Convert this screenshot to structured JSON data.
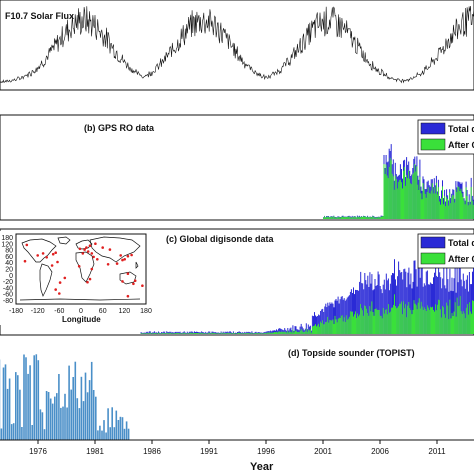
{
  "colors": {
    "total": "#2a2ad6",
    "after_qc": "#3ae03a",
    "topside": "#4a8fc8",
    "line": "#111111",
    "map_dot": "#e02020"
  },
  "chart_data": [
    {
      "type": "line",
      "panel": "a",
      "title": "F10.7 Solar Flux",
      "x_range": [
        1972,
        2015
      ],
      "cycle_peaks": [
        1980,
        1990.5,
        2001.5,
        2014
      ],
      "cycle_minima": [
        1976.5,
        1986.5,
        1996.5,
        2008.7
      ],
      "grid": false
    },
    {
      "type": "bar",
      "panel": "b",
      "title": "(b) GPS RO data",
      "legend": [
        "Total data",
        "After Quality Control"
      ],
      "legend_position": "top-right",
      "x_range": [
        1972,
        2015
      ],
      "start_year": 2001,
      "ramp_year": 2006.3
    },
    {
      "type": "bar",
      "panel": "c",
      "title": "(c) Global digisonde data",
      "legend": [
        "Total data",
        "After Quality Control"
      ],
      "legend_position": "top-right",
      "x_range": [
        1972,
        2015
      ],
      "start_year": 1985,
      "inset": {
        "type": "scatter",
        "xlabel": "Longitude",
        "x_ticks": [
          "-180",
          "-120",
          "-60",
          "0",
          "60",
          "120",
          "180"
        ],
        "y_ticks": [
          "180",
          "120",
          "80",
          "60",
          "40",
          "20",
          "0",
          "-20",
          "-40",
          "-60",
          "-80"
        ],
        "stations": [
          [
            -105,
            40
          ],
          [
            -77,
            38
          ],
          [
            -70,
            42
          ],
          [
            -95,
            30
          ],
          [
            -120,
            35
          ],
          [
            -150,
            62
          ],
          [
            -155,
            20
          ],
          [
            -80,
            9
          ],
          [
            -65,
            18
          ],
          [
            -45,
            -23
          ],
          [
            -58,
            -35
          ],
          [
            -70,
            -53
          ],
          [
            -60,
            -63
          ],
          [
            15,
            55
          ],
          [
            10,
            50
          ],
          [
            25,
            60
          ],
          [
            20,
            45
          ],
          [
            30,
            40
          ],
          [
            5,
            40
          ],
          [
            -3,
            52
          ],
          [
            35,
            31
          ],
          [
            45,
            25
          ],
          [
            75,
            12
          ],
          [
            100,
            14
          ],
          [
            115,
            23
          ],
          [
            121,
            25
          ],
          [
            140,
            36
          ],
          [
            130,
            33
          ],
          [
            110,
            35
          ],
          [
            150,
            -30
          ],
          [
            145,
            -38
          ],
          [
            130,
            -12
          ],
          [
            115,
            -32
          ],
          [
            170,
            -43
          ],
          [
            25,
            -26
          ],
          [
            18,
            -34
          ],
          [
            -5,
            7
          ],
          [
            30,
            0
          ],
          [
            130,
            -70
          ],
          [
            80,
            50
          ],
          [
            60,
            55
          ],
          [
            40,
            65
          ]
        ]
      }
    },
    {
      "type": "bar",
      "panel": "d",
      "title": "(d) Topside sounder (TOPIST)",
      "x_range": [
        1972,
        2015
      ],
      "end_year": 1984
    }
  ],
  "xaxis": {
    "label": "Year",
    "ticks": [
      1976,
      1981,
      1986,
      1991,
      1996,
      2001,
      2006,
      2011
    ]
  }
}
